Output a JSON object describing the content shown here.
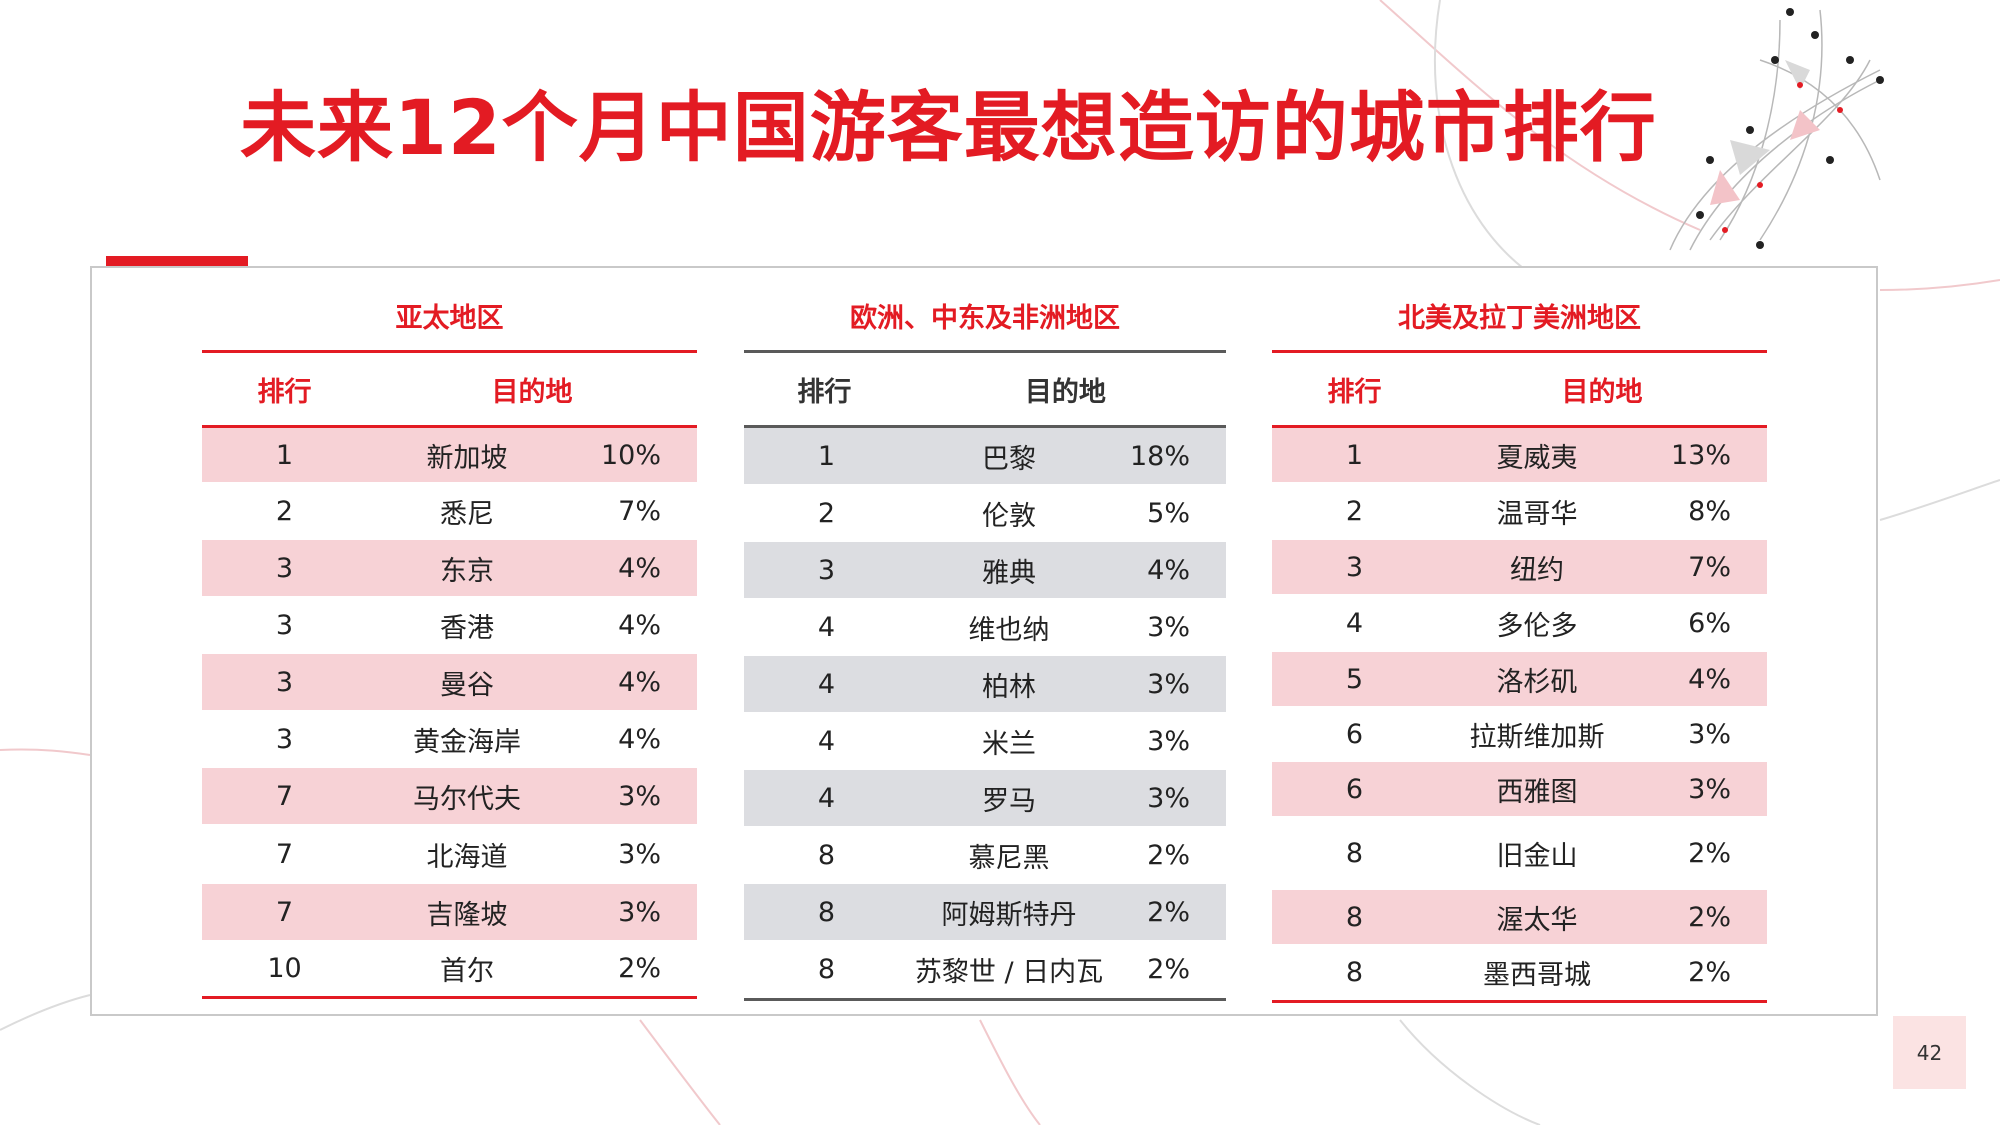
{
  "title": "未来12个月中国游客最想造访的城市排行",
  "page_number": "42",
  "colors": {
    "accent": "#e31b23",
    "shade_red": "#f7d2d6",
    "shade_gray": "#dcdde1"
  },
  "regions": [
    {
      "title": "亚太地区",
      "rank_header": "排行",
      "dest_header": "目的地",
      "rows": [
        {
          "rank": "1",
          "dest": "新加坡",
          "pct": "10%"
        },
        {
          "rank": "2",
          "dest": "悉尼",
          "pct": "7%"
        },
        {
          "rank": "3",
          "dest": "东京",
          "pct": "4%"
        },
        {
          "rank": "3",
          "dest": "香港",
          "pct": "4%"
        },
        {
          "rank": "3",
          "dest": "曼谷",
          "pct": "4%"
        },
        {
          "rank": "3",
          "dest": "黄金海岸",
          "pct": "4%"
        },
        {
          "rank": "7",
          "dest": "马尔代夫",
          "pct": "3%"
        },
        {
          "rank": "7",
          "dest": "北海道",
          "pct": "3%"
        },
        {
          "rank": "7",
          "dest": "吉隆坡",
          "pct": "3%"
        },
        {
          "rank": "10",
          "dest": "首尔",
          "pct": "2%"
        }
      ]
    },
    {
      "title": "欧洲、中东及非洲地区",
      "rank_header": "排行",
      "dest_header": "目的地",
      "rows": [
        {
          "rank": "1",
          "dest": "巴黎",
          "pct": "18%"
        },
        {
          "rank": "2",
          "dest": "伦敦",
          "pct": "5%"
        },
        {
          "rank": "3",
          "dest": "雅典",
          "pct": "4%"
        },
        {
          "rank": "4",
          "dest": "维也纳",
          "pct": "3%"
        },
        {
          "rank": "4",
          "dest": "柏林",
          "pct": "3%"
        },
        {
          "rank": "4",
          "dest": "米兰",
          "pct": "3%"
        },
        {
          "rank": "4",
          "dest": "罗马",
          "pct": "3%"
        },
        {
          "rank": "8",
          "dest": "慕尼黑",
          "pct": "2%"
        },
        {
          "rank": "8",
          "dest": "阿姆斯特丹",
          "pct": "2%"
        },
        {
          "rank": "8",
          "dest": "苏黎世 / 日内瓦",
          "pct": "2%"
        }
      ]
    },
    {
      "title": "北美及拉丁美洲地区",
      "rank_header": "排行",
      "dest_header": "目的地",
      "rows": [
        {
          "rank": "1",
          "dest": "夏威夷",
          "pct": "13%"
        },
        {
          "rank": "2",
          "dest": "温哥华",
          "pct": "8%"
        },
        {
          "rank": "3",
          "dest": "纽约",
          "pct": "7%"
        },
        {
          "rank": "4",
          "dest": "多伦多",
          "pct": "6%"
        },
        {
          "rank": "5",
          "dest": "洛杉矶",
          "pct": "4%"
        },
        {
          "rank": "6",
          "dest": "拉斯维加斯",
          "pct": "3%"
        },
        {
          "rank": "6",
          "dest": "西雅图",
          "pct": "3%"
        },
        {
          "rank": "8",
          "dest": "旧金山",
          "pct": "2%"
        },
        {
          "rank": "8",
          "dest": "渥太华",
          "pct": "2%"
        },
        {
          "rank": "8",
          "dest": "墨西哥城",
          "pct": "2%"
        }
      ]
    }
  ]
}
